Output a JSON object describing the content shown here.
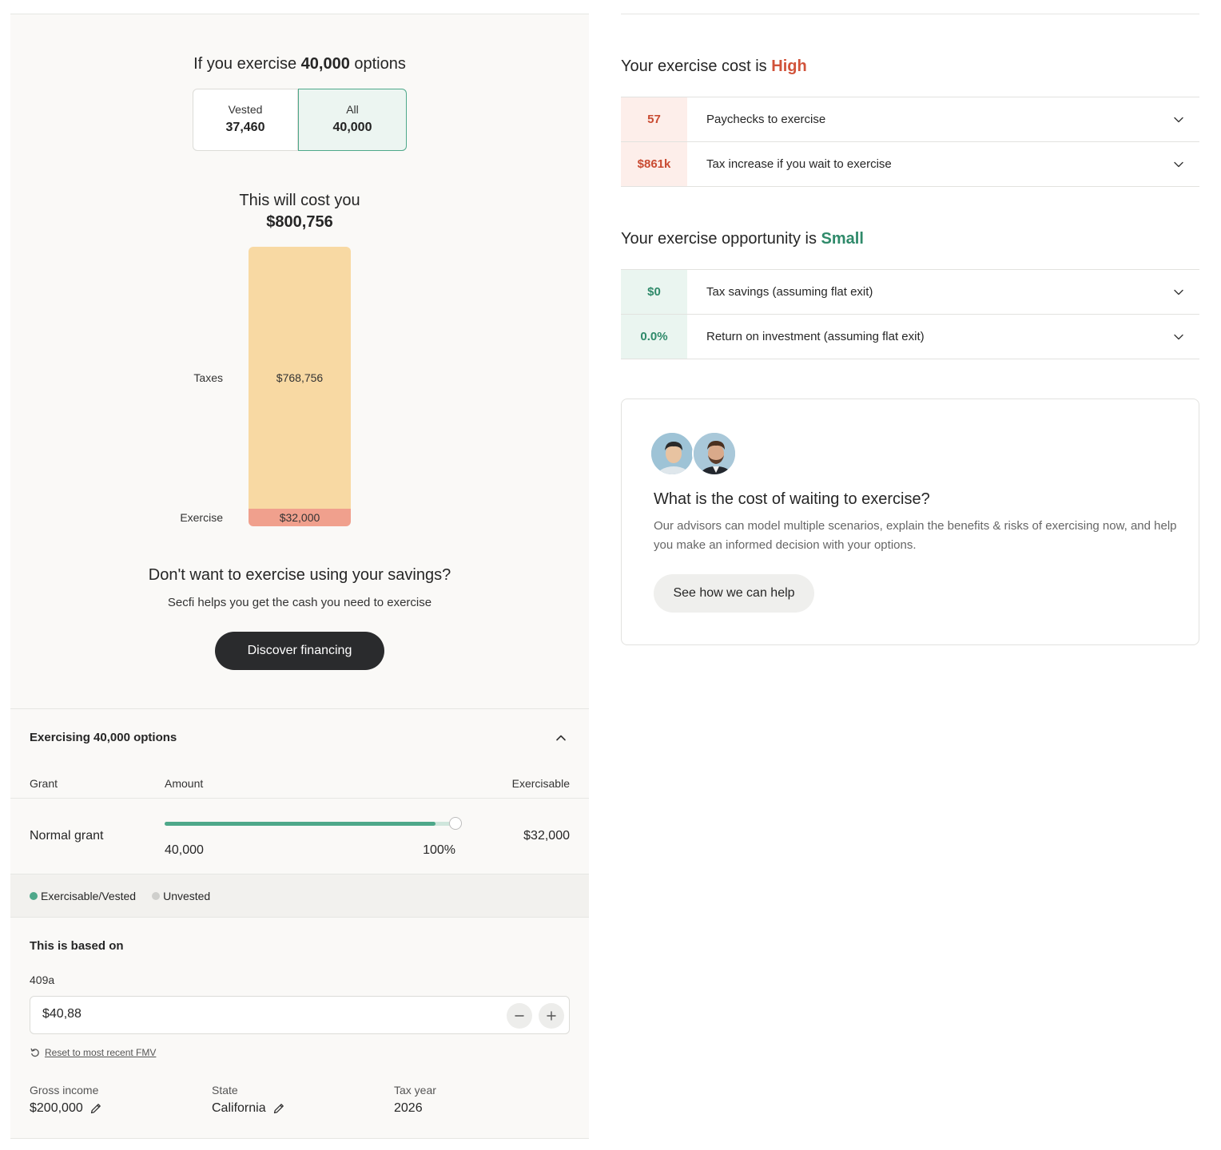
{
  "exercise": {
    "prefix": "If you exercise",
    "count": "40,000",
    "suffix": "options",
    "toggle": [
      {
        "label": "Vested",
        "value": "37,460"
      },
      {
        "label": "All",
        "value": "40,000"
      }
    ]
  },
  "cost": {
    "label": "This will cost you",
    "value": "$800,756"
  },
  "chart_data": {
    "type": "bar",
    "categories": [
      "Taxes",
      "Exercise"
    ],
    "values": [
      768756,
      32000
    ],
    "value_labels": [
      "$768,756",
      "$32,000"
    ],
    "stacked": true,
    "colors": [
      "#f8d9a3",
      "#f0a08d"
    ]
  },
  "financing": {
    "heading": "Don't want to exercise using your savings?",
    "sub": "Secfi helps you get the cash you need to exercise",
    "button": "Discover financing"
  },
  "exercising": {
    "title": "Exercising 40,000 options",
    "columns": {
      "grant": "Grant",
      "amount": "Amount",
      "exercisable": "Exercisable"
    },
    "grant": {
      "name": "Normal grant",
      "amount": "40,000",
      "percent": "100%",
      "fill_fraction": 0.93,
      "exercisable": "$32,000"
    },
    "legend": [
      {
        "label": "Exercisable/Vested",
        "color": "#4ea88a"
      },
      {
        "label": "Unvested",
        "color": "#cfcfcc"
      }
    ]
  },
  "based_on": {
    "title": "This is based on",
    "fmv_label": "409a",
    "fmv_value": "$40,88",
    "reset_link": "Reset to most recent FMV",
    "gross_income_label": "Gross income",
    "gross_income": "$200,000",
    "state_label": "State",
    "state": "California",
    "tax_year_label": "Tax year",
    "tax_year": "2026"
  },
  "cost_rating": {
    "prefix": "Your exercise cost is",
    "level": "High",
    "rows": [
      {
        "badge": "57",
        "text": "Paychecks to exercise"
      },
      {
        "badge": "$861k",
        "text": "Tax increase if you wait to exercise"
      }
    ]
  },
  "opportunity_rating": {
    "prefix": "Your exercise opportunity is",
    "level": "Small",
    "rows": [
      {
        "badge": "$0",
        "text": "Tax savings (assuming flat exit)"
      },
      {
        "badge": "0.0%",
        "text": "Return on investment (assuming flat exit)"
      }
    ]
  },
  "advisor_card": {
    "title": "What is the cost of waiting to exercise?",
    "body": "Our advisors can model multiple scenarios, explain the benefits & risks of exercising now, and help you make an informed decision with your options.",
    "button": "See how we can help"
  },
  "icons": {
    "chevron": "chevron-down-icon",
    "collapse": "chevron-up-icon",
    "edit": "pencil-icon",
    "reset": "refresh-icon"
  }
}
